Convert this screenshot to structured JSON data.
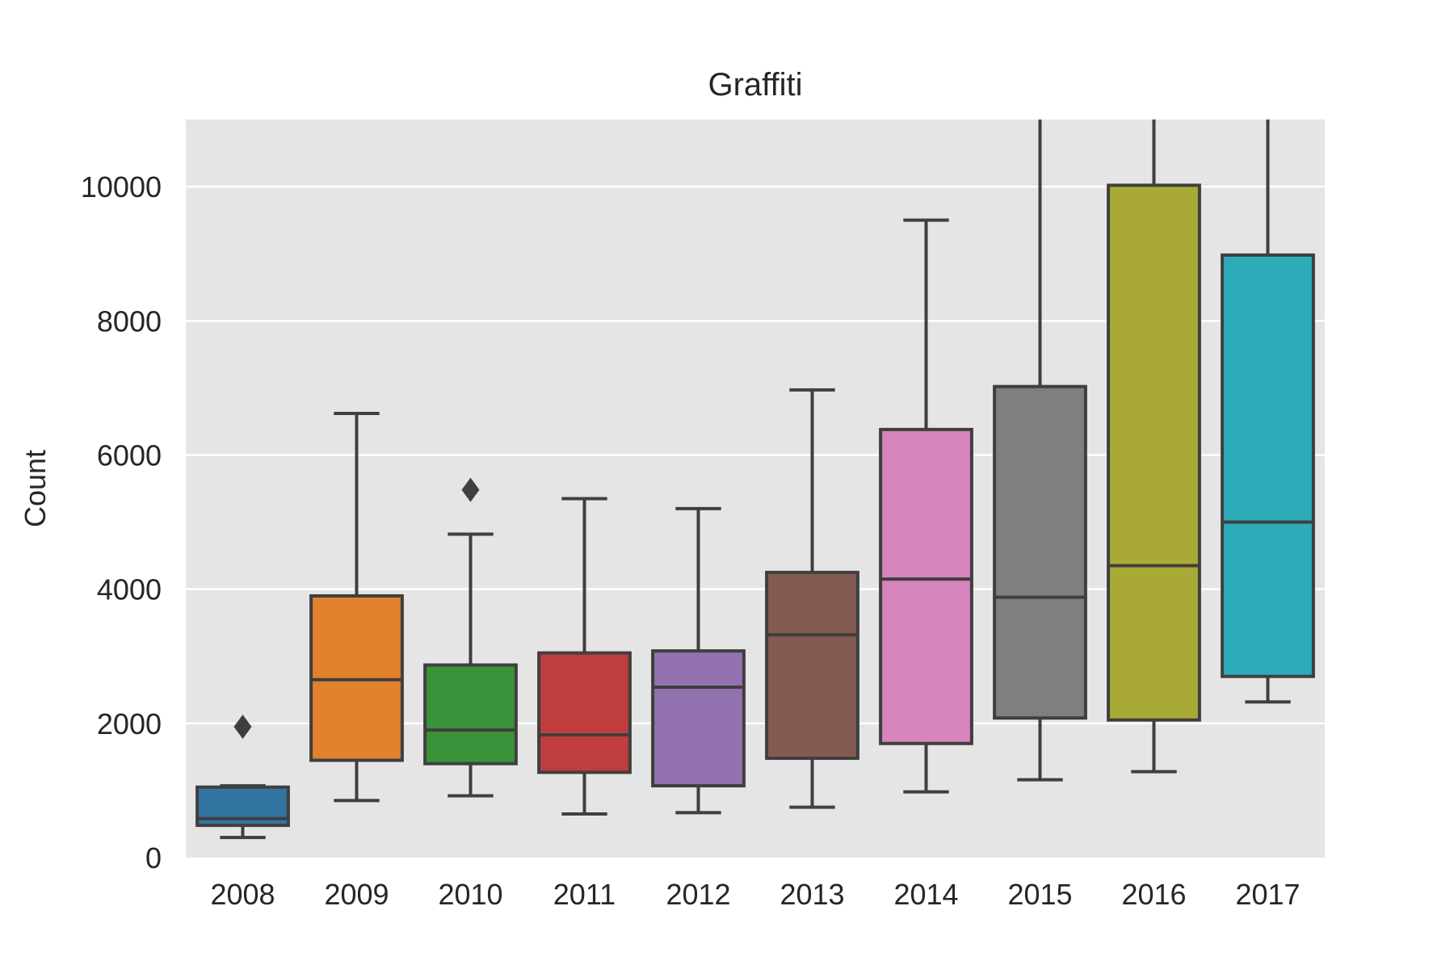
{
  "chart_data": {
    "type": "box",
    "title": "Graffiti",
    "xlabel": "",
    "ylabel": "Count",
    "ylim": [
      0,
      11000
    ],
    "yticks": [
      0,
      2000,
      4000,
      6000,
      8000,
      10000
    ],
    "grid": true,
    "legend": "none",
    "colors": {
      "background": "#e5e5e5",
      "grid": "#ffffff",
      "line": "#3f3f3f"
    },
    "categories": [
      "2008",
      "2009",
      "2010",
      "2011",
      "2012",
      "2013",
      "2014",
      "2015",
      "2016",
      "2017"
    ],
    "boxes": [
      {
        "label": "2008",
        "whisker_low": 300,
        "q1": 480,
        "median": 580,
        "q3": 1050,
        "whisker_high": 1070,
        "outliers": [
          1950
        ],
        "color": "#3274a1"
      },
      {
        "label": "2009",
        "whisker_low": 850,
        "q1": 1450,
        "median": 2650,
        "q3": 3900,
        "whisker_high": 6620,
        "outliers": [],
        "color": "#e1812c"
      },
      {
        "label": "2010",
        "whisker_low": 920,
        "q1": 1400,
        "median": 1900,
        "q3": 2870,
        "whisker_high": 4820,
        "outliers": [
          5480
        ],
        "color": "#3a923a"
      },
      {
        "label": "2011",
        "whisker_low": 650,
        "q1": 1270,
        "median": 1830,
        "q3": 3050,
        "whisker_high": 5350,
        "outliers": [],
        "color": "#c03d3e"
      },
      {
        "label": "2012",
        "whisker_low": 670,
        "q1": 1070,
        "median": 2540,
        "q3": 3080,
        "whisker_high": 5200,
        "outliers": [],
        "color": "#9372b2"
      },
      {
        "label": "2013",
        "whisker_low": 750,
        "q1": 1480,
        "median": 3320,
        "q3": 4250,
        "whisker_high": 6970,
        "outliers": [],
        "color": "#845b53"
      },
      {
        "label": "2014",
        "whisker_low": 980,
        "q1": 1700,
        "median": 4150,
        "q3": 6380,
        "whisker_high": 9500,
        "outliers": [],
        "color": "#d684bd"
      },
      {
        "label": "2015",
        "whisker_low": 1160,
        "q1": 2080,
        "median": 3880,
        "q3": 7020,
        "whisker_high": 11000,
        "outliers": [],
        "color": "#7f7f7f"
      },
      {
        "label": "2016",
        "whisker_low": 1280,
        "q1": 2050,
        "median": 4350,
        "q3": 10020,
        "whisker_high": 11000,
        "outliers": [],
        "color": "#a9aa35"
      },
      {
        "label": "2017",
        "whisker_low": 2320,
        "q1": 2700,
        "median": 5000,
        "q3": 8980,
        "whisker_high": 11000,
        "outliers": [],
        "color": "#2eabb8"
      }
    ]
  }
}
